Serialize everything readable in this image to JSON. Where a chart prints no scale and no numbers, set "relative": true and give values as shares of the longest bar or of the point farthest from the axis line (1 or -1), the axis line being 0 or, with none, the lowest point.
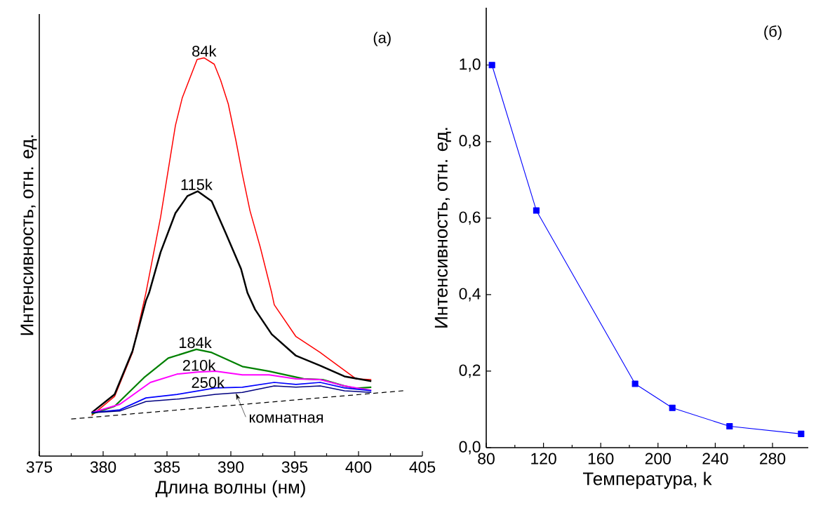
{
  "chart_data": [
    {
      "type": "line",
      "relative": true,
      "xlabel": "Длина волны (нм)",
      "ylabel": "Интенсивность, отн. ед.",
      "xlim": [
        375,
        405
      ],
      "xticks": [
        375,
        380,
        385,
        390,
        395,
        400,
        405
      ],
      "series": [
        {
          "color": "#ff0000",
          "x": [
            379.1,
            380.9,
            382.3,
            383.35,
            384.5,
            385.66,
            386.2,
            387.36,
            387.9,
            388.7,
            389.2,
            389.8,
            390.4,
            390.9,
            391.5,
            392.3,
            393.2,
            393.4,
            395.1,
            397.0,
            398.9,
            399.8,
            401.0
          ],
          "values": [
            0.102,
            0.15,
            0.26,
            0.41,
            0.6,
            0.83,
            0.9,
            0.996,
            1.0,
            0.984,
            0.944,
            0.884,
            0.792,
            0.708,
            0.616,
            0.525,
            0.41,
            0.38,
            0.3,
            0.26,
            0.215,
            0.194,
            0.192
          ]
        },
        {
          "color": "#000000",
          "x": [
            379.1,
            380.9,
            382.3,
            383.35,
            383.6,
            384.5,
            385.66,
            386.6,
            387.4,
            388.5,
            389.6,
            390.8,
            391.3,
            391.9,
            393.2,
            395.1,
            397.0,
            398.9,
            401.0
          ],
          "values": [
            0.109,
            0.155,
            0.264,
            0.39,
            0.41,
            0.512,
            0.61,
            0.653,
            0.665,
            0.64,
            0.56,
            0.47,
            0.41,
            0.368,
            0.306,
            0.252,
            0.227,
            0.2,
            0.188
          ]
        },
        {
          "color": "#008000",
          "x": [
            379.1,
            380.9,
            383.2,
            385.1,
            387.3,
            388.5,
            390.9,
            393.0,
            395.7,
            397.2,
            398.9,
            399.8,
            401.0
          ],
          "values": [
            0.106,
            0.125,
            0.197,
            0.246,
            0.268,
            0.26,
            0.225,
            0.213,
            0.194,
            0.192,
            0.176,
            0.17,
            0.173
          ]
        },
        {
          "color": "#ff00ff",
          "x": [
            379.1,
            381.3,
            383.7,
            385.8,
            387.4,
            388.8,
            390.9,
            393.0,
            395.1,
            397.0,
            398.9,
            401.0
          ],
          "values": [
            0.109,
            0.13,
            0.185,
            0.206,
            0.211,
            0.213,
            0.204,
            0.204,
            0.194,
            0.192,
            0.176,
            0.165
          ]
        },
        {
          "color": "#0000ff",
          "x": [
            379.1,
            381.3,
            383.35,
            385.8,
            388.8,
            390.9,
            393.4,
            395.1,
            397.0,
            398.9,
            401.0
          ],
          "values": [
            0.109,
            0.116,
            0.146,
            0.155,
            0.171,
            0.173,
            0.185,
            0.18,
            0.185,
            0.171,
            0.164
          ]
        },
        {
          "color": "#000080",
          "x": [
            379.1,
            381.3,
            383.35,
            385.8,
            388.8,
            390.9,
            393.4,
            395.1,
            397.0,
            398.9,
            401.0
          ],
          "values": [
            0.109,
            0.113,
            0.137,
            0.143,
            0.155,
            0.16,
            0.176,
            0.173,
            0.176,
            0.164,
            0.16
          ]
        },
        {
          "color": "#000000",
          "line_style": "dashed",
          "x": [
            377.5,
            403.5
          ],
          "values": [
            0.093,
            0.164
          ]
        }
      ],
      "annotations": [
        {
          "text": "84k",
          "x": 387.9,
          "y": 1.0
        },
        {
          "text": "115k",
          "x": 387.3,
          "y": 0.665
        },
        {
          "text": "184k",
          "x": 387.2,
          "y": 0.268
        },
        {
          "text": "210k",
          "x": 387.5,
          "y": 0.211
        },
        {
          "text": "250k",
          "x": 388.2,
          "y": 0.168
        },
        {
          "text": "комнатная",
          "x": 390.4,
          "y": 0.158
        },
        "(a)"
      ]
    },
    {
      "type": "line",
      "xlabel": "Температура, k",
      "ylabel": "Интенсивность, отн. ед.",
      "xlim": [
        80,
        305
      ],
      "xticks": [
        80,
        120,
        160,
        200,
        240,
        280
      ],
      "ylim": [
        0,
        1.15
      ],
      "yticks": [
        {
          "value": 0,
          "label": "0,0"
        },
        {
          "value": 0.2,
          "label": "0,2"
        },
        {
          "value": 0.4,
          "label": "0,4"
        },
        {
          "value": 0.6,
          "label": "0,6"
        },
        {
          "value": 0.8,
          "label": "0,8"
        },
        {
          "value": 1.0,
          "label": "1,0"
        }
      ],
      "marker": "square",
      "x": [
        84,
        115,
        184,
        210,
        250,
        300
      ],
      "series": [
        {
          "color": "#0000ff",
          "values": [
            1.0,
            0.62,
            0.167,
            0.104,
            0.056,
            0.036
          ]
        }
      ],
      "annotations": [
        "(б)"
      ]
    }
  ]
}
